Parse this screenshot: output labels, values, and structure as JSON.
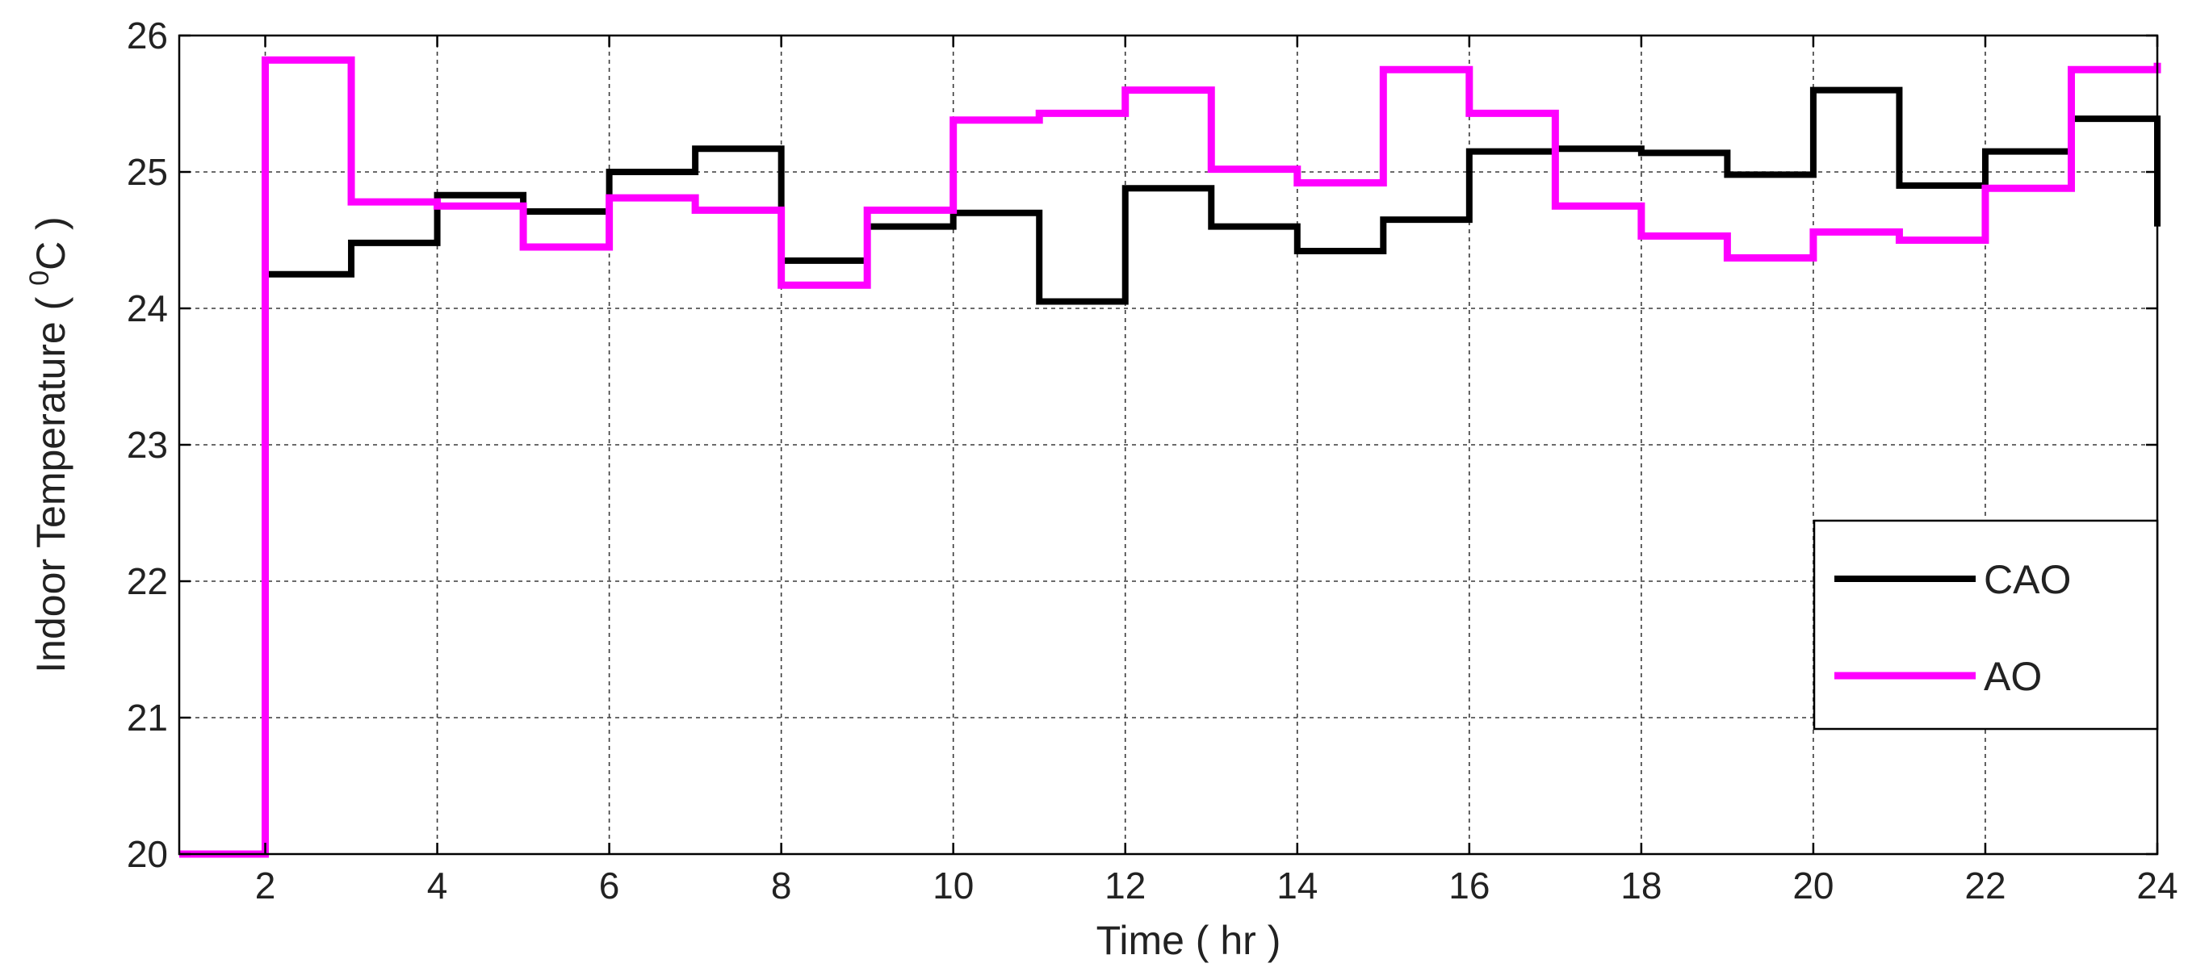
{
  "chart_data": {
    "type": "line",
    "step": true,
    "title": "",
    "xlabel": "Time ( hr )",
    "ylabel": {
      "main": "Indoor Temperature ( ",
      "superscript": "0",
      "unit": "C )"
    },
    "xlim": [
      1,
      24
    ],
    "ylim": [
      20,
      26
    ],
    "xticks": [
      "2",
      "4",
      "6",
      "8",
      "10",
      "12",
      "14",
      "16",
      "18",
      "20",
      "22",
      "24"
    ],
    "yticks": [
      "20",
      "21",
      "22",
      "23",
      "24",
      "25",
      "26"
    ],
    "grid": true,
    "legend_position": "lower-right",
    "series": [
      {
        "name": "CAO",
        "color": "#000000",
        "x": [
          1,
          2,
          3,
          4,
          5,
          6,
          7,
          8,
          9,
          10,
          11,
          12,
          13,
          14,
          15,
          16,
          17,
          18,
          19,
          20,
          21,
          22,
          23,
          24
        ],
        "y": [
          20.0,
          24.25,
          24.48,
          24.83,
          24.71,
          25.0,
          25.17,
          24.35,
          24.6,
          24.7,
          24.05,
          24.88,
          24.6,
          24.42,
          24.65,
          25.15,
          25.17,
          25.14,
          24.98,
          25.6,
          24.9,
          25.15,
          25.39,
          24.6
        ]
      },
      {
        "name": "AO",
        "color": "#ff00ff",
        "x": [
          1,
          2,
          3,
          4,
          5,
          6,
          7,
          8,
          9,
          10,
          11,
          12,
          13,
          14,
          15,
          16,
          17,
          18,
          19,
          20,
          21,
          22,
          23,
          24
        ],
        "y": [
          20.0,
          25.82,
          24.78,
          24.75,
          24.45,
          24.81,
          24.72,
          24.17,
          24.72,
          25.38,
          25.43,
          25.6,
          25.02,
          24.92,
          25.75,
          25.43,
          24.75,
          24.53,
          24.37,
          24.56,
          24.5,
          24.88,
          25.75,
          25.8
        ]
      }
    ]
  }
}
